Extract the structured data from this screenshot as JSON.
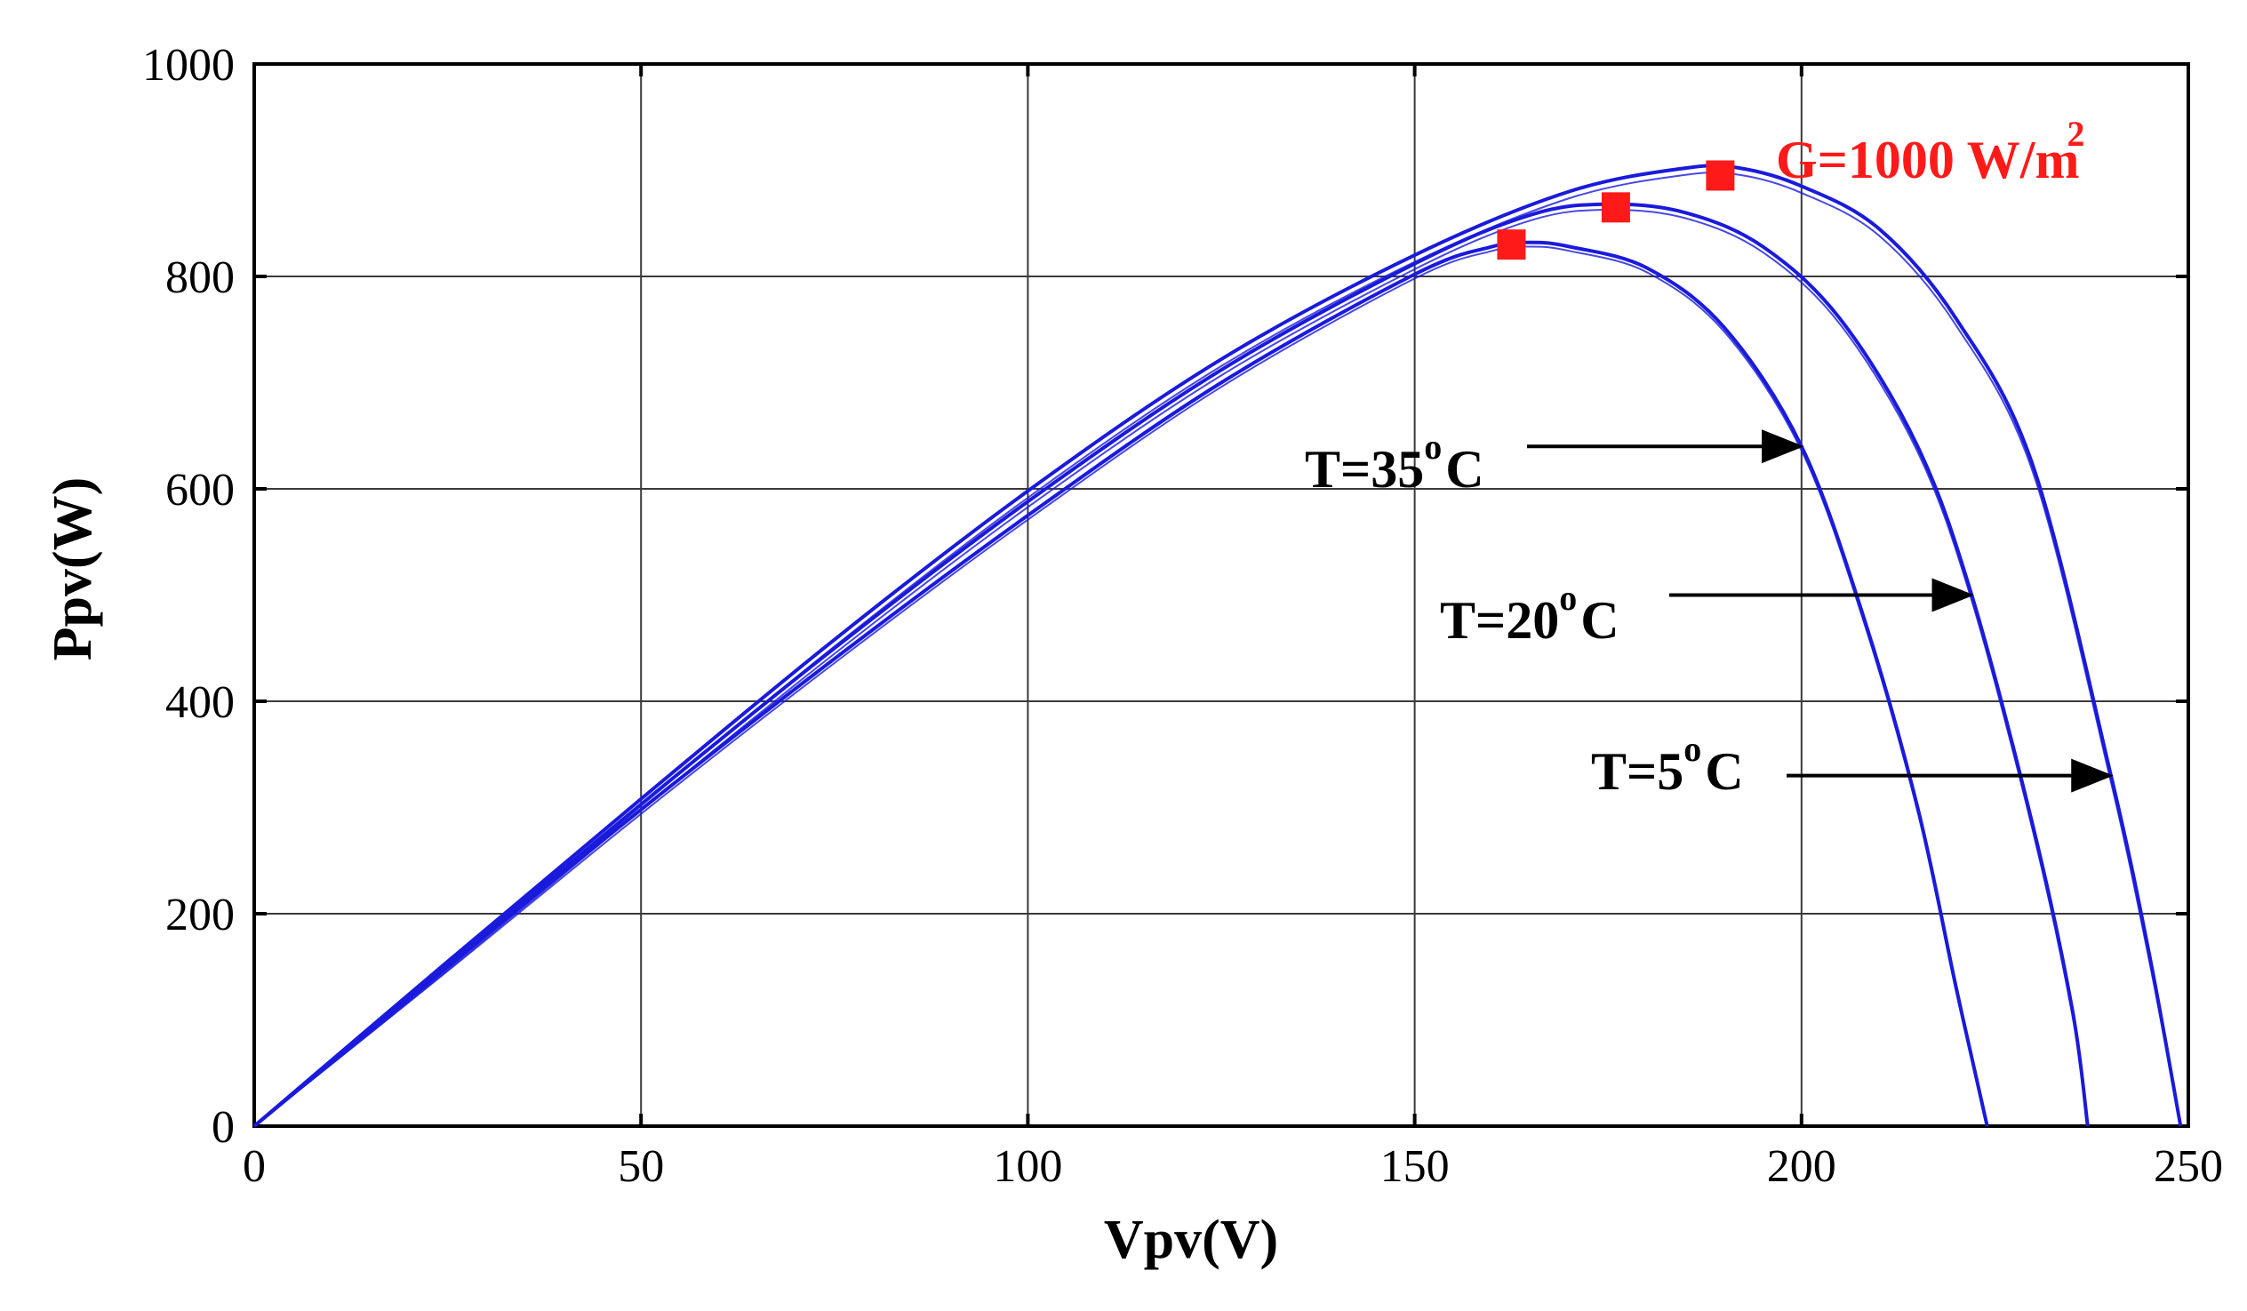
{
  "chart_data": {
    "type": "line",
    "title": "",
    "xlabel": "Vpv(V)",
    "ylabel": "Ppv(W)",
    "xlim": [
      0,
      250
    ],
    "ylim": [
      0,
      1000
    ],
    "x_ticks": [
      "0",
      "50",
      "100",
      "150",
      "200",
      "250"
    ],
    "y_ticks": [
      "0",
      "200",
      "400",
      "600",
      "800",
      "1000"
    ],
    "grid": true,
    "line_color": "#1a1adc",
    "marker_color": "#ff1a1a",
    "irradiance_label": {
      "text": "G=1000 W/m",
      "superscript": "2",
      "color": "#ff1a1a"
    },
    "series": [
      {
        "name": "T=35°C",
        "label_text": "T=35",
        "label_sup": "o",
        "label_unit": "C",
        "points": [
          [
            0,
            0
          ],
          [
            25,
            150
          ],
          [
            50,
            298
          ],
          [
            75,
            440
          ],
          [
            100,
            575
          ],
          [
            125,
            700
          ],
          [
            150,
            802
          ],
          [
            160,
            828
          ],
          [
            165,
            832
          ],
          [
            170,
            828
          ],
          [
            180,
            808
          ],
          [
            190,
            752
          ],
          [
            200,
            640
          ],
          [
            208,
            480
          ],
          [
            215,
            300
          ],
          [
            220,
            130
          ],
          [
            224,
            0
          ]
        ],
        "mpp": [
          162.5,
          830
        ],
        "arrow_target_v": 200
      },
      {
        "name": "T=20°C",
        "label_text": "T=20",
        "label_sup": "o",
        "label_unit": "C",
        "points": [
          [
            0,
            0
          ],
          [
            25,
            152
          ],
          [
            50,
            303
          ],
          [
            75,
            450
          ],
          [
            100,
            588
          ],
          [
            125,
            712
          ],
          [
            150,
            812
          ],
          [
            165,
            858
          ],
          [
            175,
            868
          ],
          [
            185,
            860
          ],
          [
            195,
            828
          ],
          [
            205,
            760
          ],
          [
            215,
            640
          ],
          [
            222,
            500
          ],
          [
            230,
            280
          ],
          [
            235,
            110
          ],
          [
            237,
            0
          ]
        ],
        "mpp": [
          176,
          865
        ],
        "arrow_target_v": 222
      },
      {
        "name": "T=5°C",
        "label_text": "T=5",
        "label_sup": "o",
        "label_unit": "C",
        "points": [
          [
            0,
            0
          ],
          [
            25,
            155
          ],
          [
            50,
            308
          ],
          [
            75,
            458
          ],
          [
            100,
            598
          ],
          [
            125,
            722
          ],
          [
            150,
            820
          ],
          [
            170,
            880
          ],
          [
            185,
            902
          ],
          [
            192,
            902
          ],
          [
            200,
            885
          ],
          [
            210,
            845
          ],
          [
            220,
            760
          ],
          [
            230,
            620
          ],
          [
            240,
            330
          ],
          [
            245,
            160
          ],
          [
            249,
            0
          ]
        ],
        "mpp": [
          189.5,
          895
        ],
        "arrow_target_v": 240
      }
    ]
  }
}
